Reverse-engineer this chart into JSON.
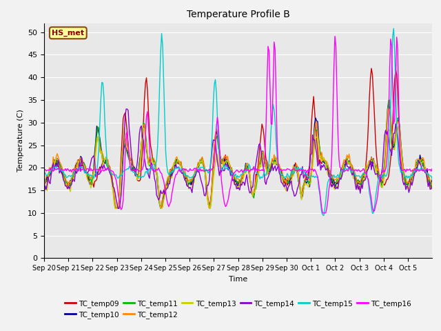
{
  "title": "Temperature Profile B",
  "xlabel": "Time",
  "ylabel": "Temperature (C)",
  "ylim": [
    0,
    52
  ],
  "yticks": [
    0,
    5,
    10,
    15,
    20,
    25,
    30,
    35,
    40,
    45,
    50
  ],
  "xtick_labels": [
    "Sep 20",
    "Sep 21",
    "Sep 22",
    "Sep 23",
    "Sep 24",
    "Sep 25",
    "Sep 26",
    "Sep 27",
    "Sep 28",
    "Sep 29",
    "Sep 30",
    "Oct 1",
    "Oct 2",
    "Oct 3",
    "Oct 4",
    "Oct 5"
  ],
  "legend_entries": [
    "TC_temp09",
    "TC_temp10",
    "TC_temp11",
    "TC_temp12",
    "TC_temp13",
    "TC_temp14",
    "TC_temp15",
    "TC_temp16"
  ],
  "colors": {
    "TC_temp09": "#cc0000",
    "TC_temp10": "#000099",
    "TC_temp11": "#00bb00",
    "TC_temp12": "#ff8800",
    "TC_temp13": "#cccc00",
    "TC_temp14": "#8800cc",
    "TC_temp15": "#00cccc",
    "TC_temp16": "#ff00ff"
  },
  "annotation_text": "HS_met",
  "annotation_box_color": "#ffff99",
  "annotation_box_edge": "#8b4513",
  "background_color": "#e8e8e8",
  "grid_color": "#ffffff",
  "fig_width": 6.4,
  "fig_height": 4.8,
  "dpi": 100
}
